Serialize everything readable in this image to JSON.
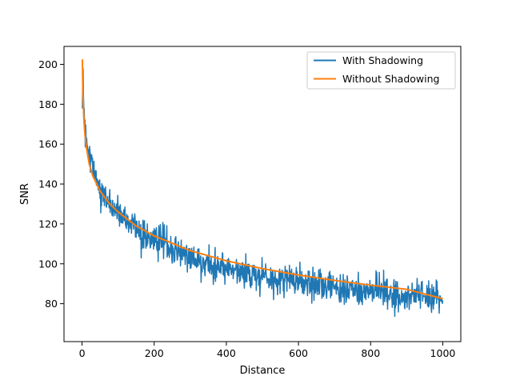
{
  "chart_data": {
    "type": "line",
    "title": "",
    "xlabel": "Distance",
    "ylabel": "SNR",
    "xlim": [
      -50,
      1050
    ],
    "ylim": [
      61,
      209
    ],
    "xticks": [
      0,
      200,
      400,
      600,
      800,
      1000
    ],
    "yticks": [
      80,
      100,
      120,
      140,
      160,
      180,
      200
    ],
    "grid": false,
    "legend_position": "top-right",
    "series": [
      {
        "name": "With Shadowing",
        "color": "#1f77b4",
        "style": "noisy",
        "x_range": [
          1,
          1000
        ],
        "anchor_points": [
          [
            1,
            181
          ],
          [
            3,
            190
          ],
          [
            5,
            178
          ],
          [
            8,
            168
          ],
          [
            12,
            160
          ],
          [
            18,
            155
          ],
          [
            25,
            150
          ],
          [
            40,
            140
          ],
          [
            60,
            134
          ],
          [
            100,
            126
          ],
          [
            150,
            118
          ],
          [
            200,
            112
          ],
          [
            300,
            103
          ],
          [
            400,
            98
          ],
          [
            500,
            94
          ],
          [
            600,
            91
          ],
          [
            700,
            88
          ],
          [
            800,
            86
          ],
          [
            900,
            84
          ],
          [
            1000,
            83
          ]
        ],
        "noise_amplitude": 8,
        "min_value": 68,
        "max_value": 202
      },
      {
        "name": "Without Shadowing",
        "color": "#ff7f0e",
        "style": "smooth",
        "x": [
          1,
          2,
          3,
          5,
          8,
          12,
          20,
          30,
          50,
          75,
          100,
          150,
          200,
          300,
          400,
          500,
          600,
          700,
          800,
          900,
          1000
        ],
        "values": [
          202.5,
          189.5,
          182.3,
          173.2,
          165.1,
          158.4,
          150.0,
          144.0,
          136.5,
          130.4,
          126.0,
          119.0,
          114.0,
          106.6,
          101.5,
          97.6,
          94.4,
          91.7,
          89.3,
          87.2,
          82.5
        ]
      }
    ]
  }
}
